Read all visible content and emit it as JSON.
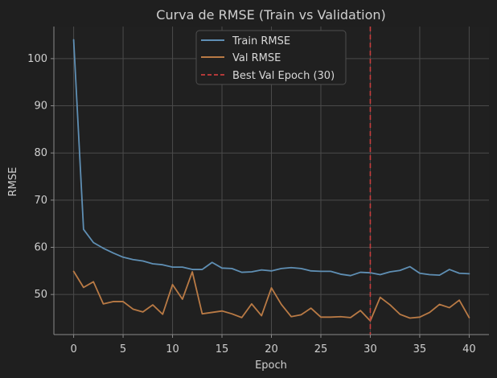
{
  "chart_data": {
    "type": "line",
    "title": "Curva de RMSE (Train vs Validation)",
    "xlabel": "Epoch",
    "ylabel": "RMSE",
    "xlim": [
      -2,
      42
    ],
    "ylim": [
      41.5,
      106.8
    ],
    "x_ticks": [
      0,
      5,
      10,
      15,
      20,
      25,
      30,
      35,
      40
    ],
    "y_ticks": [
      50,
      60,
      70,
      80,
      90,
      100
    ],
    "grid": true,
    "legend_position": "top-center",
    "x": [
      0,
      1,
      2,
      3,
      4,
      5,
      6,
      7,
      8,
      9,
      10,
      11,
      12,
      13,
      14,
      15,
      16,
      17,
      18,
      19,
      20,
      21,
      22,
      23,
      24,
      25,
      26,
      27,
      28,
      29,
      30,
      31,
      32,
      33,
      34,
      35,
      36,
      37,
      38,
      39,
      40
    ],
    "series": [
      {
        "name": "Train RMSE",
        "color": "#5f8fb4",
        "values": [
          104.0,
          63.8,
          61.0,
          59.8,
          58.8,
          57.9,
          57.4,
          57.1,
          56.5,
          56.3,
          55.8,
          55.8,
          55.3,
          55.3,
          56.8,
          55.6,
          55.5,
          54.7,
          54.8,
          55.2,
          55.0,
          55.5,
          55.7,
          55.5,
          55.0,
          54.9,
          54.9,
          54.3,
          54.0,
          54.7,
          54.6,
          54.2,
          54.8,
          55.1,
          55.9,
          54.5,
          54.2,
          54.1,
          55.3,
          54.5,
          54.4
        ]
      },
      {
        "name": "Val RMSE",
        "color": "#b97a45",
        "values": [
          54.9,
          51.5,
          52.7,
          48.0,
          48.5,
          48.5,
          46.9,
          46.3,
          47.8,
          45.8,
          52.1,
          49.0,
          54.8,
          45.9,
          46.2,
          46.5,
          45.9,
          45.1,
          48.0,
          45.5,
          51.4,
          47.9,
          45.3,
          45.7,
          47.1,
          45.2,
          45.2,
          45.3,
          45.1,
          46.6,
          44.4,
          49.4,
          47.8,
          45.8,
          45.0,
          45.2,
          46.2,
          47.9,
          47.2,
          48.8,
          45.1
        ]
      }
    ],
    "reference_line": {
      "name": "Best Val Epoch (30)",
      "x": 30,
      "color": "#c63d3d"
    }
  }
}
